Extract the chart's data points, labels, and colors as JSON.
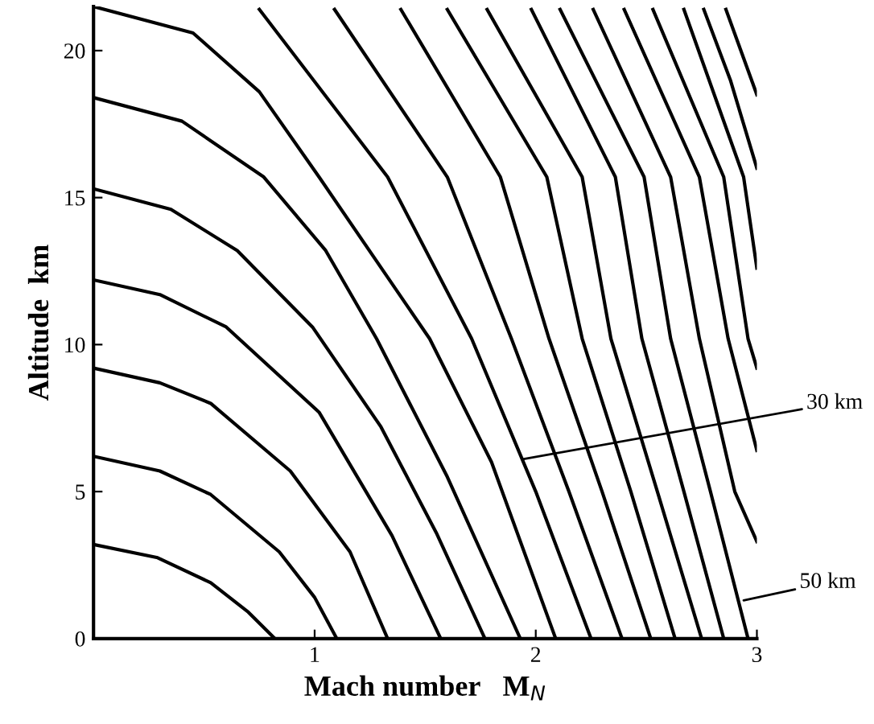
{
  "chart_data": {
    "type": "line",
    "xlabel": "Mach number   M$_{N}$",
    "ylabel": "Altitude  km",
    "xlim": [
      0,
      3
    ],
    "ylim": [
      0,
      21.5
    ],
    "xticks": [
      1,
      2,
      3
    ],
    "yticks": [
      0,
      5,
      10,
      15,
      20
    ],
    "grid": false,
    "legend": false,
    "marker": "none",
    "line_style": "solid",
    "annotations": [
      {
        "text": "30 km",
        "x": 1.94,
        "y": 6.1
      },
      {
        "text": "50 km",
        "x": 2.94,
        "y": 1.3
      }
    ],
    "series": [
      {
        "color": "#000000",
        "x": [
          0,
          0.29,
          0.53,
          0.7,
          0.82
        ],
        "values": [
          3.2,
          2.75,
          1.9,
          0.9,
          0
        ]
      },
      {
        "color": "#000000",
        "x": [
          0,
          0.3,
          0.53,
          0.84,
          1.0,
          1.1
        ],
        "values": [
          6.2,
          5.7,
          4.9,
          2.95,
          1.4,
          0
        ]
      },
      {
        "color": "#000000",
        "x": [
          0,
          0.3,
          0.53,
          0.89,
          1.16,
          1.33
        ],
        "values": [
          9.2,
          8.7,
          8.0,
          5.7,
          2.95,
          0
        ]
      },
      {
        "color": "#000000",
        "x": [
          0,
          0.3,
          0.6,
          1.02,
          1.35,
          1.57
        ],
        "values": [
          12.2,
          11.7,
          10.6,
          7.7,
          3.5,
          0
        ]
      },
      {
        "color": "#000000",
        "x": [
          0,
          0.35,
          0.65,
          0.99,
          1.3,
          1.55,
          1.77
        ],
        "values": [
          15.3,
          14.6,
          13.2,
          10.6,
          7.2,
          3.6,
          0
        ]
      },
      {
        "color": "#000000",
        "x": [
          0,
          0.4,
          0.77,
          1.05,
          1.28,
          1.6,
          1.93
        ],
        "values": [
          18.4,
          17.6,
          15.7,
          13.2,
          10.2,
          5.5,
          0
        ]
      },
      {
        "color": "#000000",
        "x": [
          0,
          0.45,
          0.75,
          1.02,
          1.52,
          1.8,
          2.09
        ],
        "values": [
          21.5,
          20.6,
          18.6,
          15.7,
          10.2,
          6.0,
          0
        ]
      },
      {
        "color": "#000000",
        "x": [
          0.75,
          1.33,
          1.71,
          2.0,
          2.25
        ],
        "values": [
          21.4,
          15.7,
          10.2,
          5,
          0
        ]
      },
      {
        "color": "#000000",
        "x": [
          1.09,
          1.6,
          1.89,
          2.15,
          2.39
        ],
        "values": [
          21.4,
          15.7,
          10.2,
          5,
          0
        ]
      },
      {
        "color": "#000000",
        "x": [
          1.39,
          1.84,
          2.06,
          2.3,
          2.52
        ],
        "values": [
          21.4,
          15.7,
          10.2,
          5,
          0
        ]
      },
      {
        "color": "#000000",
        "x": [
          1.6,
          2.05,
          2.21,
          2.43,
          2.63
        ],
        "values": [
          21.4,
          15.7,
          10.2,
          5,
          0
        ]
      },
      {
        "color": "#000000",
        "x": [
          1.78,
          2.21,
          2.34,
          2.55,
          2.75
        ],
        "values": [
          21.4,
          15.7,
          10.2,
          5,
          0
        ]
      },
      {
        "color": "#000000",
        "x": [
          1.98,
          2.36,
          2.48,
          2.67,
          2.85
        ],
        "values": [
          21.4,
          15.7,
          10.2,
          5,
          0
        ]
      },
      {
        "color": "#000000",
        "x": [
          2.11,
          2.49,
          2.61,
          2.79,
          2.96
        ],
        "values": [
          21.4,
          15.7,
          10.2,
          5,
          0
        ]
      },
      {
        "color": "#000000",
        "x": [
          2.26,
          2.61,
          2.74,
          2.9,
          3.0
        ],
        "values": [
          21.4,
          15.7,
          10.2,
          5,
          3.3
        ]
      },
      {
        "color": "#000000",
        "x": [
          2.4,
          2.74,
          2.87,
          3.0
        ],
        "values": [
          21.4,
          15.7,
          10.2,
          6.4
        ]
      },
      {
        "color": "#000000",
        "x": [
          2.53,
          2.85,
          2.96,
          3.0
        ],
        "values": [
          21.4,
          15.7,
          10.2,
          9.2
        ]
      },
      {
        "color": "#000000",
        "x": [
          2.67,
          2.94,
          3.0
        ],
        "values": [
          21.4,
          15.7,
          12.6
        ]
      },
      {
        "color": "#000000",
        "x": [
          2.76,
          2.88,
          3.0
        ],
        "values": [
          21.4,
          19.0,
          16.0
        ]
      },
      {
        "color": "#000000",
        "x": [
          2.86,
          3.0
        ],
        "values": [
          21.4,
          18.5
        ]
      }
    ]
  }
}
